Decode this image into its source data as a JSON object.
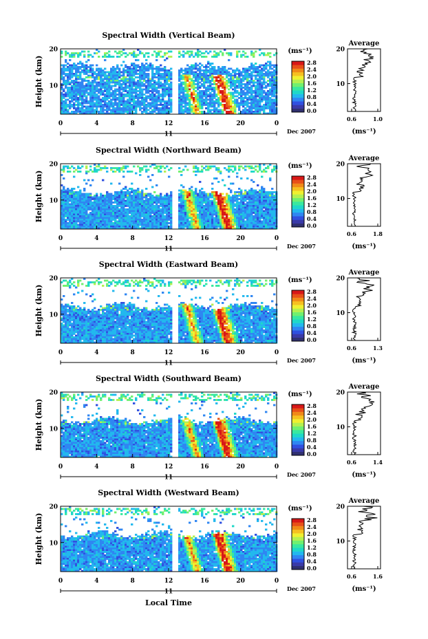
{
  "colors": {
    "scale": [
      "#303070",
      "#3a3aa8",
      "#3050e0",
      "#2f86f2",
      "#22b8ee",
      "#1ed8c8",
      "#38e8a0",
      "#70f070",
      "#b4f050",
      "#f0f030",
      "#f6c020",
      "#f08a18",
      "#e85018",
      "#d81818"
    ],
    "line": "#000000",
    "background": "#ffffff"
  },
  "footer": {
    "xlabel": "Local Time"
  },
  "chart_data": [
    {
      "type": "heatmap",
      "title": "Spectral Width (Vertical Beam)",
      "ylabel": "Height (km)",
      "yticks": [
        "20",
        "10"
      ],
      "xticks": [
        "0",
        "4",
        "8",
        "12",
        "16",
        "20",
        "0"
      ],
      "xlim_hours": [
        0,
        24
      ],
      "ylim_km": [
        2,
        20
      ],
      "day_label": "11",
      "date_label": "Dec 2007",
      "colorbar": {
        "unit": "(ms⁻¹)",
        "ticks": [
          "2.8",
          "2.4",
          "2.0",
          "1.6",
          "1.2",
          "0.8",
          "0.4",
          "0.0"
        ],
        "range": [
          0,
          2.8
        ]
      },
      "average": {
        "title": "Average",
        "unit": "(ms⁻¹)",
        "xticks": [
          "0.6",
          "1.0"
        ],
        "yticks": [
          "20",
          "10"
        ],
        "xlim": [
          0.5,
          1.1
        ]
      }
    },
    {
      "type": "heatmap",
      "title": "Spectral Width (Northward Beam)",
      "ylabel": "Height (km)",
      "yticks": [
        "20",
        "10"
      ],
      "xticks": [
        "0",
        "4",
        "8",
        "12",
        "16",
        "20",
        "0"
      ],
      "xlim_hours": [
        0,
        24
      ],
      "ylim_km": [
        2,
        20
      ],
      "day_label": "11",
      "date_label": "Dec 2007",
      "colorbar": {
        "unit": "(ms⁻¹)",
        "ticks": [
          "2.8",
          "2.4",
          "2.0",
          "1.6",
          "1.2",
          "0.8",
          "0.4",
          "0.0"
        ],
        "range": [
          0,
          2.8
        ]
      },
      "average": {
        "title": "Average",
        "unit": "(ms⁻¹)",
        "xticks": [
          "0.6",
          "1.8"
        ],
        "yticks": [
          "20",
          "10"
        ],
        "xlim": [
          0.4,
          1.9
        ]
      }
    },
    {
      "type": "heatmap",
      "title": "Spectral Width (Eastward Beam)",
      "ylabel": "Height (km)",
      "yticks": [
        "20",
        "10"
      ],
      "xticks": [
        "0",
        "4",
        "8",
        "12",
        "16",
        "20",
        "0"
      ],
      "xlim_hours": [
        0,
        24
      ],
      "ylim_km": [
        2,
        20
      ],
      "day_label": "11",
      "date_label": "Dec 2007",
      "colorbar": {
        "unit": "(ms⁻¹)",
        "ticks": [
          "2.8",
          "2.4",
          "2.0",
          "1.6",
          "1.2",
          "0.8",
          "0.4",
          "0.0"
        ],
        "range": [
          0,
          2.8
        ]
      },
      "average": {
        "title": "Average",
        "unit": "(ms⁻¹)",
        "xticks": [
          "0.6",
          "1.3"
        ],
        "yticks": [
          "20",
          "10"
        ],
        "xlim": [
          0.45,
          1.35
        ]
      }
    },
    {
      "type": "heatmap",
      "title": "Spectral Width (Southward Beam)",
      "ylabel": "Height (km)",
      "yticks": [
        "20",
        "10"
      ],
      "xticks": [
        "0",
        "4",
        "8",
        "12",
        "16",
        "20",
        "0"
      ],
      "xlim_hours": [
        0,
        24
      ],
      "ylim_km": [
        2,
        20
      ],
      "day_label": "11",
      "date_label": "Dec 2007",
      "colorbar": {
        "unit": "(ms⁻¹)",
        "ticks": [
          "2.8",
          "2.4",
          "2.0",
          "1.6",
          "1.2",
          "0.8",
          "0.4",
          "0.0"
        ],
        "range": [
          0,
          2.8
        ]
      },
      "average": {
        "title": "Average",
        "unit": "(ms⁻¹)",
        "xticks": [
          "0.6",
          "1.4"
        ],
        "yticks": [
          "20",
          "10"
        ],
        "xlim": [
          0.45,
          1.5
        ]
      }
    },
    {
      "type": "heatmap",
      "title": "Spectral Width (Westward Beam)",
      "ylabel": "Height (km)",
      "yticks": [
        "20",
        "10"
      ],
      "xticks": [
        "0",
        "4",
        "8",
        "12",
        "16",
        "20",
        "0"
      ],
      "xlim_hours": [
        0,
        24
      ],
      "ylim_km": [
        2,
        20
      ],
      "day_label": "11",
      "date_label": "Dec 2007",
      "colorbar": {
        "unit": "(ms⁻¹)",
        "ticks": [
          "2.8",
          "2.4",
          "2.0",
          "1.6",
          "1.2",
          "0.8",
          "0.4",
          "0.0"
        ],
        "range": [
          0,
          2.8
        ]
      },
      "average": {
        "title": "Average",
        "unit": "(ms⁻¹)",
        "xticks": [
          "0.6",
          "1.6"
        ],
        "yticks": [
          "20",
          "10"
        ],
        "xlim": [
          0.45,
          1.65
        ]
      }
    }
  ]
}
